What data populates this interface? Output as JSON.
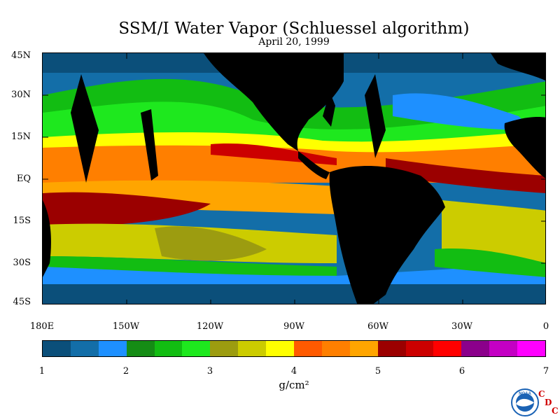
{
  "title": "SSM/I Water Vapor (Schluessel algorithm)",
  "subtitle": "April 20, 1999",
  "latitude_labels": [
    "45N",
    "30N",
    "15N",
    "EQ",
    "15S",
    "30S",
    "45S"
  ],
  "longitude_labels": [
    "180E",
    "150W",
    "120W",
    "90W",
    "60W",
    "30W",
    "0"
  ],
  "colorbar": {
    "colors": [
      "#0b4f7a",
      "#136ea8",
      "#1e90ff",
      "#158c15",
      "#12bd12",
      "#1ee81e",
      "#9c9c10",
      "#cccc00",
      "#ffff00",
      "#ff5a00",
      "#ff7f00",
      "#ffa500",
      "#9b0000",
      "#cc0000",
      "#ff0000",
      "#8b008b",
      "#c400c4",
      "#ff00ff"
    ],
    "tick_labels": [
      "1",
      "2",
      "3",
      "4",
      "5",
      "6",
      "7"
    ],
    "unit": "g/cm²"
  },
  "logo": {
    "icon": "noaa-logo-icon",
    "text": "NOAA",
    "cdc_letters": [
      "C",
      "D",
      "C"
    ]
  }
}
